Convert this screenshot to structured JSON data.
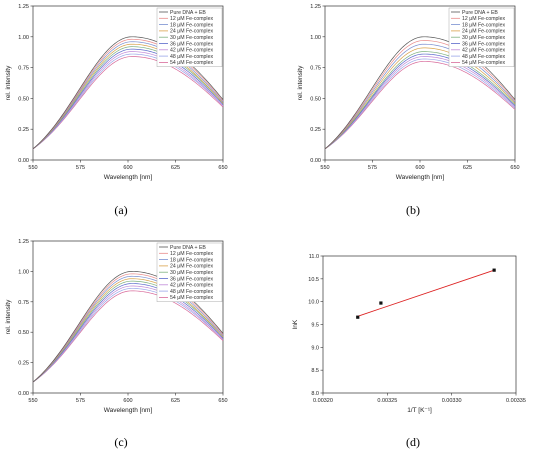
{
  "chart_data": [
    {
      "type": "line",
      "caption": "(a)",
      "xlabel": "Wavelength [nm]",
      "ylabel": "rel. intensity",
      "xlim": [
        550,
        650
      ],
      "ylim": [
        0,
        1.25
      ],
      "xticks": [
        "550",
        "575",
        "600",
        "625",
        "650"
      ],
      "yticks": [
        "0.00",
        "0.25",
        "0.50",
        "0.75",
        "1.00",
        "1.25"
      ],
      "legend_position": "top-right",
      "series": [
        {
          "name": "Pure DNA + EB",
          "color": "#555555",
          "peak": 1.0,
          "end": 0.49
        },
        {
          "name": "12 μM Fe-complex",
          "color": "#e88a8a",
          "peak": 0.98,
          "end": 0.48
        },
        {
          "name": "18 μM Fe-complex",
          "color": "#7a8fd0",
          "peak": 0.96,
          "end": 0.47
        },
        {
          "name": "24 μM Fe-complex",
          "color": "#d8a24a",
          "peak": 0.94,
          "end": 0.46
        },
        {
          "name": "30 μM Fe-complex",
          "color": "#7fb27f",
          "peak": 0.92,
          "end": 0.46
        },
        {
          "name": "36 μM Fe-complex",
          "color": "#5a6acb",
          "peak": 0.9,
          "end": 0.45
        },
        {
          "name": "42 μM Fe-complex",
          "color": "#c08ad8",
          "peak": 0.88,
          "end": 0.44
        },
        {
          "name": "48 μM Fe-complex",
          "color": "#9aa6e8",
          "peak": 0.86,
          "end": 0.44
        },
        {
          "name": "54 μM Fe-complex",
          "color": "#d86a9a",
          "peak": 0.84,
          "end": 0.43
        }
      ]
    },
    {
      "type": "line",
      "caption": "(b)",
      "xlabel": "Wavelength [nm]",
      "ylabel": "rel. intensity",
      "xlim": [
        550,
        650
      ],
      "ylim": [
        0,
        1.25
      ],
      "xticks": [
        "550",
        "575",
        "600",
        "625",
        "650"
      ],
      "yticks": [
        "0.00",
        "0.25",
        "0.50",
        "0.75",
        "1.00",
        "1.25"
      ],
      "legend_position": "top-right",
      "series": [
        {
          "name": "Pure DNA + EB",
          "color": "#555555",
          "peak": 1.0,
          "end": 0.49
        },
        {
          "name": "12 μM Fe-complex",
          "color": "#e88a8a",
          "peak": 0.97,
          "end": 0.48
        },
        {
          "name": "18 μM Fe-complex",
          "color": "#7a8fd0",
          "peak": 0.94,
          "end": 0.47
        },
        {
          "name": "24 μM Fe-complex",
          "color": "#d8a24a",
          "peak": 0.91,
          "end": 0.46
        },
        {
          "name": "30 μM Fe-complex",
          "color": "#7fb27f",
          "peak": 0.88,
          "end": 0.45
        },
        {
          "name": "36 μM Fe-complex",
          "color": "#5a6acb",
          "peak": 0.86,
          "end": 0.44
        },
        {
          "name": "42 μM Fe-complex",
          "color": "#c08ad8",
          "peak": 0.84,
          "end": 0.43
        },
        {
          "name": "48 μM Fe-complex",
          "color": "#9aa6e8",
          "peak": 0.82,
          "end": 0.42
        },
        {
          "name": "54 μM Fe-complex",
          "color": "#d86a9a",
          "peak": 0.8,
          "end": 0.41
        }
      ]
    },
    {
      "type": "line",
      "caption": "(c)",
      "xlabel": "Wavelength [nm]",
      "ylabel": "rel. intensity",
      "xlim": [
        550,
        650
      ],
      "ylim": [
        0,
        1.25
      ],
      "xticks": [
        "550",
        "575",
        "600",
        "625",
        "650"
      ],
      "yticks": [
        "0.00",
        "0.25",
        "0.50",
        "0.75",
        "1.00",
        "1.25"
      ],
      "legend_position": "top-right",
      "series": [
        {
          "name": "Pure DNA + EB",
          "color": "#555555",
          "peak": 1.0,
          "end": 0.49
        },
        {
          "name": "12 μM Fe-complex",
          "color": "#e88a8a",
          "peak": 0.98,
          "end": 0.48
        },
        {
          "name": "18 μM Fe-complex",
          "color": "#7a8fd0",
          "peak": 0.96,
          "end": 0.47
        },
        {
          "name": "24 μM Fe-complex",
          "color": "#d8a24a",
          "peak": 0.94,
          "end": 0.46
        },
        {
          "name": "30 μM Fe-complex",
          "color": "#7fb27f",
          "peak": 0.92,
          "end": 0.46
        },
        {
          "name": "36 μM Fe-complex",
          "color": "#5a6acb",
          "peak": 0.9,
          "end": 0.45
        },
        {
          "name": "42 μM Fe-complex",
          "color": "#c08ad8",
          "peak": 0.88,
          "end": 0.44
        },
        {
          "name": "48 μM Fe-complex",
          "color": "#9aa6e8",
          "peak": 0.86,
          "end": 0.44
        },
        {
          "name": "54 μM Fe-complex",
          "color": "#d86a9a",
          "peak": 0.84,
          "end": 0.43
        }
      ]
    },
    {
      "type": "scatter",
      "caption": "(d)",
      "xlabel": "1/T [K⁻¹]",
      "ylabel": "lnK",
      "xlim": [
        0.0032,
        0.00335
      ],
      "ylim": [
        8.0,
        11.0
      ],
      "xticks": [
        "0.00320",
        "0.00325",
        "0.00330",
        "0.00335"
      ],
      "yticks": [
        "8.0",
        "8.5",
        "9.0",
        "9.5",
        "10.0",
        "10.5",
        "11.0"
      ],
      "points": [
        {
          "x": 0.003227,
          "y": 9.66
        },
        {
          "x": 0.003245,
          "y": 9.97
        },
        {
          "x": 0.003333,
          "y": 10.69
        }
      ],
      "fit_line": {
        "x": [
          0.003227,
          0.003333
        ],
        "y": [
          9.68,
          10.69
        ],
        "color": "#dd2222"
      },
      "grid": false
    }
  ]
}
